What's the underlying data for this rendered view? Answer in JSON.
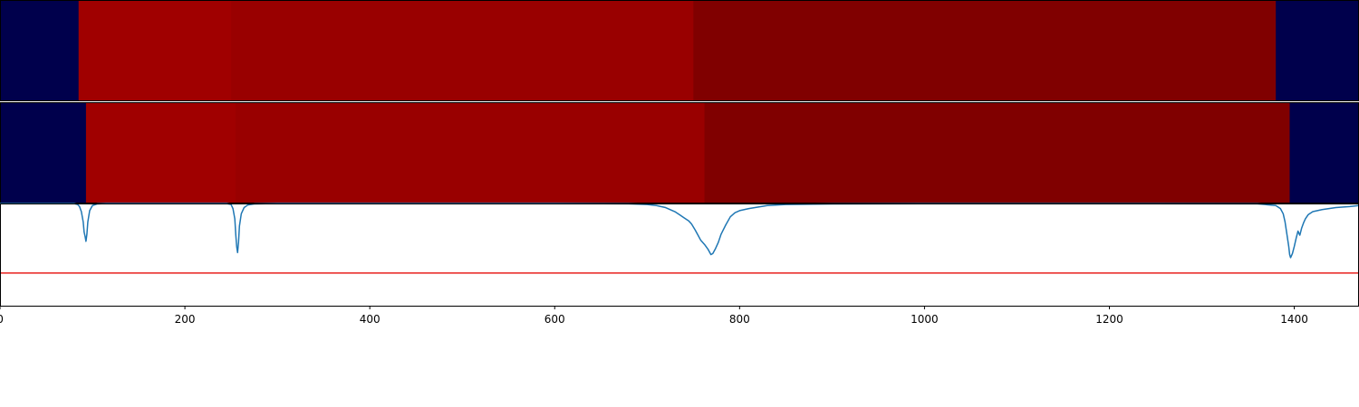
{
  "chart_data": [
    {
      "type": "heatmap",
      "segments": [
        {
          "start": 0,
          "end": 85,
          "color": "#00004c"
        },
        {
          "start": 85,
          "end": 250,
          "color": "#a00000"
        },
        {
          "start": 250,
          "end": 750,
          "color": "#990000"
        },
        {
          "start": 750,
          "end": 1380,
          "color": "#800000"
        },
        {
          "start": 1380,
          "end": 1470,
          "color": "#00004c"
        }
      ]
    },
    {
      "type": "heatmap",
      "segments": [
        {
          "start": 0,
          "end": 93,
          "color": "#00004c"
        },
        {
          "start": 93,
          "end": 255,
          "color": "#a00000"
        },
        {
          "start": 255,
          "end": 762,
          "color": "#990000"
        },
        {
          "start": 762,
          "end": 1395,
          "color": "#800000"
        },
        {
          "start": 1395,
          "end": 1470,
          "color": "#00004c"
        }
      ]
    },
    {
      "type": "line",
      "xlim": [
        0,
        1470
      ],
      "ylim": [
        -1.0,
        0.0
      ],
      "xticks": [
        "0",
        "200",
        "400",
        "600",
        "800",
        "1000",
        "1200",
        "1400"
      ],
      "xtick_values": [
        0,
        200,
        400,
        600,
        800,
        1000,
        1200,
        1400
      ],
      "threshold": {
        "y": -0.68,
        "color": "#e8201e"
      },
      "series": [
        {
          "color": "#1f77b4",
          "x": [
            0,
            80,
            84,
            86,
            88,
            90,
            91,
            92,
            93,
            94,
            95,
            97,
            100,
            105,
            115,
            200,
            245,
            250,
            252,
            254,
            255,
            256,
            257,
            258,
            259,
            261,
            264,
            268,
            275,
            300,
            600,
            680,
            700,
            710,
            720,
            730,
            735,
            740,
            745,
            748,
            752,
            755,
            758,
            762,
            766,
            769,
            771,
            774,
            777,
            780,
            785,
            790,
            795,
            800,
            810,
            830,
            850,
            900,
            1000,
            1200,
            1360,
            1380,
            1385,
            1388,
            1390,
            1392,
            1394,
            1395,
            1396,
            1398,
            1400,
            1402,
            1404,
            1406,
            1408,
            1410,
            1412,
            1415,
            1420,
            1430,
            1445,
            1460,
            1470
          ],
          "y": [
            0,
            0,
            -0.01,
            -0.03,
            -0.08,
            -0.18,
            -0.28,
            -0.32,
            -0.37,
            -0.3,
            -0.18,
            -0.07,
            -0.02,
            -0.005,
            0,
            0,
            0,
            -0.01,
            -0.05,
            -0.15,
            -0.3,
            -0.42,
            -0.48,
            -0.38,
            -0.22,
            -0.1,
            -0.04,
            -0.015,
            -0.005,
            0,
            0,
            -0.003,
            -0.01,
            -0.02,
            -0.04,
            -0.08,
            -0.11,
            -0.14,
            -0.17,
            -0.2,
            -0.26,
            -0.31,
            -0.36,
            -0.4,
            -0.45,
            -0.5,
            -0.49,
            -0.44,
            -0.38,
            -0.3,
            -0.21,
            -0.13,
            -0.09,
            -0.07,
            -0.05,
            -0.02,
            -0.01,
            -0.004,
            -0.002,
            -0.002,
            -0.003,
            -0.02,
            -0.05,
            -0.1,
            -0.18,
            -0.3,
            -0.42,
            -0.5,
            -0.53,
            -0.49,
            -0.42,
            -0.34,
            -0.27,
            -0.31,
            -0.24,
            -0.19,
            -0.15,
            -0.11,
            -0.08,
            -0.06,
            -0.04,
            -0.03,
            -0.02
          ]
        }
      ]
    }
  ]
}
